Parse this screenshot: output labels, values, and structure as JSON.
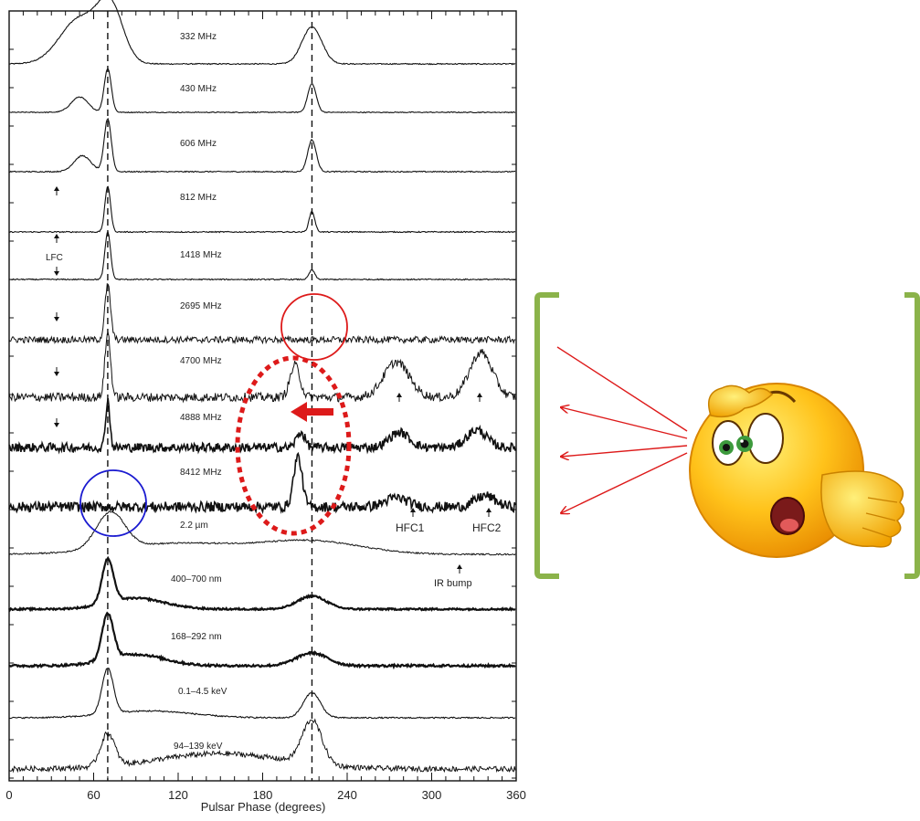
{
  "chart_data": {
    "type": "line",
    "title": "",
    "xlabel": "Pulsar Phase (degrees)",
    "ylabel": "",
    "xlim": [
      0,
      360
    ],
    "x_ticks": [
      "0",
      "60",
      "120",
      "180",
      "240",
      "300",
      "360"
    ],
    "reference_phases": [
      70,
      215
    ],
    "series": [
      {
        "name": "332 MHz",
        "peaks": [
          {
            "phase": 50,
            "height": 0.85,
            "width": 14
          },
          {
            "phase": 72,
            "height": 1.0,
            "width": 9
          },
          {
            "phase": 215,
            "height": 0.7,
            "width": 7
          }
        ],
        "noise": 0.01,
        "lw": 1.1
      },
      {
        "name": "430 MHz",
        "peaks": [
          {
            "phase": 50,
            "height": 0.35,
            "width": 6
          },
          {
            "phase": 70,
            "height": 1.0,
            "width": 2.5
          },
          {
            "phase": 215,
            "height": 0.65,
            "width": 3
          }
        ],
        "noise": 0.01,
        "lw": 1.1
      },
      {
        "name": "606 MHz",
        "peaks": [
          {
            "phase": 52,
            "height": 0.3,
            "width": 6
          },
          {
            "phase": 70,
            "height": 1.0,
            "width": 2.5
          },
          {
            "phase": 215,
            "height": 0.6,
            "width": 3
          }
        ],
        "noise": 0.01,
        "lw": 1.1
      },
      {
        "name": "812 MHz",
        "peaks": [
          {
            "phase": 70,
            "height": 1.0,
            "width": 2
          },
          {
            "phase": 215,
            "height": 0.45,
            "width": 2
          }
        ],
        "noise": 0.012,
        "lw": 1.1
      },
      {
        "name": "1418 MHz",
        "peaks": [
          {
            "phase": 70,
            "height": 1.0,
            "width": 2
          },
          {
            "phase": 215,
            "height": 0.2,
            "width": 2
          }
        ],
        "noise": 0.012,
        "lw": 1.1
      },
      {
        "name": "2695 MHz",
        "peaks": [
          {
            "phase": 70,
            "height": 1.0,
            "width": 2
          }
        ],
        "noise": 0.06,
        "lw": 1.0
      },
      {
        "name": "4700 MHz",
        "peaks": [
          {
            "phase": 70,
            "height": 1.0,
            "width": 2
          },
          {
            "phase": 203,
            "height": 0.5,
            "width": 3.5
          },
          {
            "phase": 275,
            "height": 0.55,
            "width": 9
          },
          {
            "phase": 335,
            "height": 0.7,
            "width": 8
          }
        ],
        "noise": 0.07,
        "lw": 1.0
      },
      {
        "name": "4888 MHz",
        "peaks": [
          {
            "phase": 70,
            "height": 0.95,
            "width": 1.5
          },
          {
            "phase": 207,
            "height": 0.3,
            "width": 3
          },
          {
            "phase": 277,
            "height": 0.3,
            "width": 7
          },
          {
            "phase": 332,
            "height": 0.35,
            "width": 7
          }
        ],
        "noise": 0.09,
        "lw": 1.6
      },
      {
        "name": "8412 MHz",
        "peaks": [
          {
            "phase": 205,
            "height": 1.0,
            "width": 3
          },
          {
            "phase": 275,
            "height": 0.18,
            "width": 8
          },
          {
            "phase": 338,
            "height": 0.22,
            "width": 7
          }
        ],
        "noise": 0.1,
        "lw": 1.6
      },
      {
        "name": "2.2 µm",
        "peaks": [
          {
            "phase": 72,
            "height": 1.0,
            "width": 10
          },
          {
            "phase": 215,
            "height": 0.35,
            "width": 35
          },
          {
            "phase": 120,
            "height": 0.3,
            "width": 45
          }
        ],
        "noise": 0.02,
        "lw": 1.0
      },
      {
        "name": "400–700 nm",
        "peaks": [
          {
            "phase": 70,
            "height": 1.0,
            "width": 4
          },
          {
            "phase": 215,
            "height": 0.3,
            "width": 10
          },
          {
            "phase": 90,
            "height": 0.25,
            "width": 20
          }
        ],
        "noise": 0.02,
        "lw": 2.2
      },
      {
        "name": "168–292 nm",
        "peaks": [
          {
            "phase": 70,
            "height": 1.0,
            "width": 4
          },
          {
            "phase": 215,
            "height": 0.28,
            "width": 11
          },
          {
            "phase": 90,
            "height": 0.25,
            "width": 20
          }
        ],
        "noise": 0.025,
        "lw": 2.2
      },
      {
        "name": "0.1–4.5 keV",
        "peaks": [
          {
            "phase": 70,
            "height": 1.0,
            "width": 4
          },
          {
            "phase": 215,
            "height": 0.55,
            "width": 6
          },
          {
            "phase": 100,
            "height": 0.15,
            "width": 30
          }
        ],
        "noise": 0.015,
        "lw": 1.1
      },
      {
        "name": "94–139 keV",
        "peaks": [
          {
            "phase": 70,
            "height": 0.75,
            "width": 5
          },
          {
            "phase": 215,
            "height": 1.0,
            "width": 7
          },
          {
            "phase": 150,
            "height": 0.35,
            "width": 45
          }
        ],
        "noise": 0.06,
        "lw": 1.0
      }
    ],
    "annotations": [
      {
        "text": "LFC",
        "phase": 30
      },
      {
        "text": "HFC1",
        "phase": 278
      },
      {
        "text": "HFC2",
        "phase": 335
      },
      {
        "text": "IR bump",
        "phase": 325
      }
    ],
    "highlight_colors": {
      "red": "#dd1a1a",
      "blue": "#1a1ad0",
      "bracket": "#8bb34a"
    },
    "figure_icon": "surprised-emoji-icon"
  }
}
